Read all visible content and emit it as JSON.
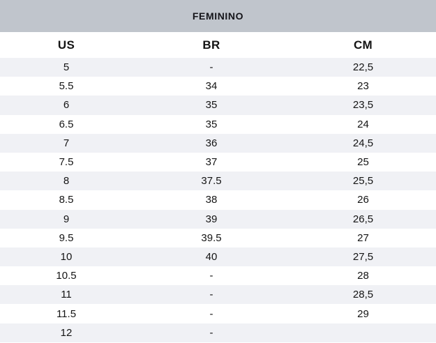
{
  "table": {
    "title": "FEMININO",
    "columns": [
      "US",
      "BR",
      "CM"
    ],
    "rows": [
      [
        "5",
        "-",
        "22,5"
      ],
      [
        "5.5",
        "34",
        "23"
      ],
      [
        "6",
        "35",
        "23,5"
      ],
      [
        "6.5",
        "35",
        "24"
      ],
      [
        "7",
        "36",
        "24,5"
      ],
      [
        "7.5",
        "37",
        "25"
      ],
      [
        "8",
        "37.5",
        "25,5"
      ],
      [
        "8.5",
        "38",
        "26"
      ],
      [
        "9",
        "39",
        "26,5"
      ],
      [
        "9.5",
        "39.5",
        "27"
      ],
      [
        "10",
        "40",
        "27,5"
      ],
      [
        "10.5",
        "-",
        "28"
      ],
      [
        "11",
        "-",
        "28,5"
      ],
      [
        "11.5",
        "-",
        "29"
      ],
      [
        "12",
        "-",
        ""
      ]
    ]
  },
  "colors": {
    "header_band": "#c0c5cc",
    "row_stripe": "#f0f1f5",
    "text": "#141414"
  }
}
